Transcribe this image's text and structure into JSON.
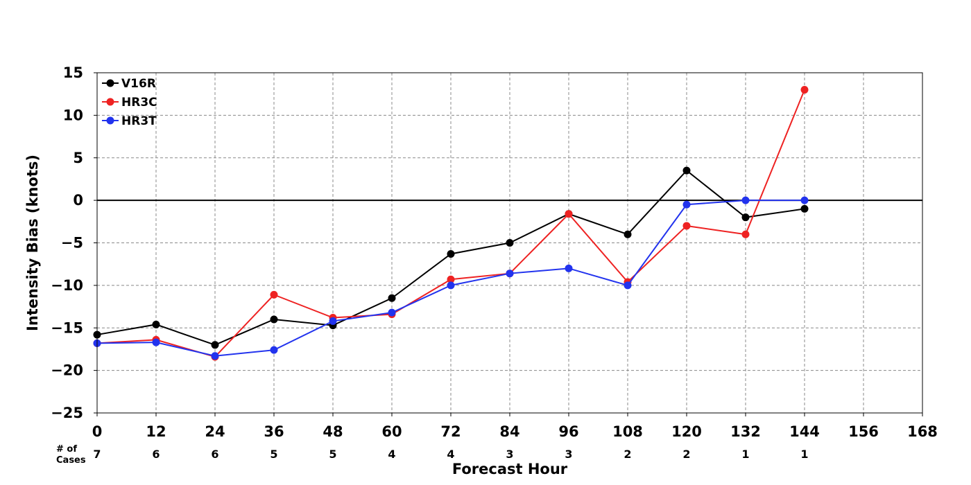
{
  "chart_data": {
    "type": "line",
    "title": "",
    "xlabel": "Forecast Hour",
    "ylabel": "Intensity Bias (knots)",
    "xlim": [
      0,
      168
    ],
    "ylim": [
      -25,
      15
    ],
    "x_ticks": [
      0,
      12,
      24,
      36,
      48,
      60,
      72,
      84,
      96,
      108,
      120,
      132,
      144,
      156,
      168
    ],
    "y_ticks": [
      15,
      10,
      5,
      0,
      -5,
      -10,
      -15,
      -20,
      -25
    ],
    "y_tick_labels": [
      "15",
      "10",
      "5",
      "0",
      "−5",
      "−10",
      "−15",
      "−20",
      "−25"
    ],
    "grid": true,
    "legend_position": "top-left",
    "zero_line": true,
    "cases_label_line1": "# of",
    "cases_label_line2": "Cases",
    "cases": [
      {
        "x": 0,
        "n": "7"
      },
      {
        "x": 12,
        "n": "6"
      },
      {
        "x": 24,
        "n": "6"
      },
      {
        "x": 36,
        "n": "5"
      },
      {
        "x": 48,
        "n": "5"
      },
      {
        "x": 60,
        "n": "4"
      },
      {
        "x": 72,
        "n": "4"
      },
      {
        "x": 84,
        "n": "3"
      },
      {
        "x": 96,
        "n": "3"
      },
      {
        "x": 108,
        "n": "2"
      },
      {
        "x": 120,
        "n": "2"
      },
      {
        "x": 132,
        "n": "1"
      },
      {
        "x": 144,
        "n": "1"
      }
    ],
    "x": [
      0,
      12,
      24,
      36,
      48,
      60,
      72,
      84,
      96,
      108,
      120,
      132,
      144
    ],
    "series": [
      {
        "name": "V16R",
        "color": "#000000",
        "values": [
          -15.8,
          -14.6,
          -17.0,
          -14.0,
          -14.7,
          -11.5,
          -6.3,
          -5.0,
          -1.6,
          -4.0,
          3.5,
          -2.0,
          -1.0
        ]
      },
      {
        "name": "HR3C",
        "color": "#ee2222",
        "values": [
          -16.8,
          -16.4,
          -18.4,
          -11.1,
          -13.8,
          -13.4,
          -9.3,
          -8.6,
          -1.6,
          -9.6,
          -3.0,
          -4.0,
          13.0
        ]
      },
      {
        "name": "HR3T",
        "color": "#2233ee",
        "values": [
          -16.8,
          -16.7,
          -18.3,
          -17.6,
          -14.2,
          -13.2,
          -10.0,
          -8.6,
          -8.0,
          -10.0,
          -0.5,
          0.0,
          0.0
        ]
      }
    ]
  }
}
